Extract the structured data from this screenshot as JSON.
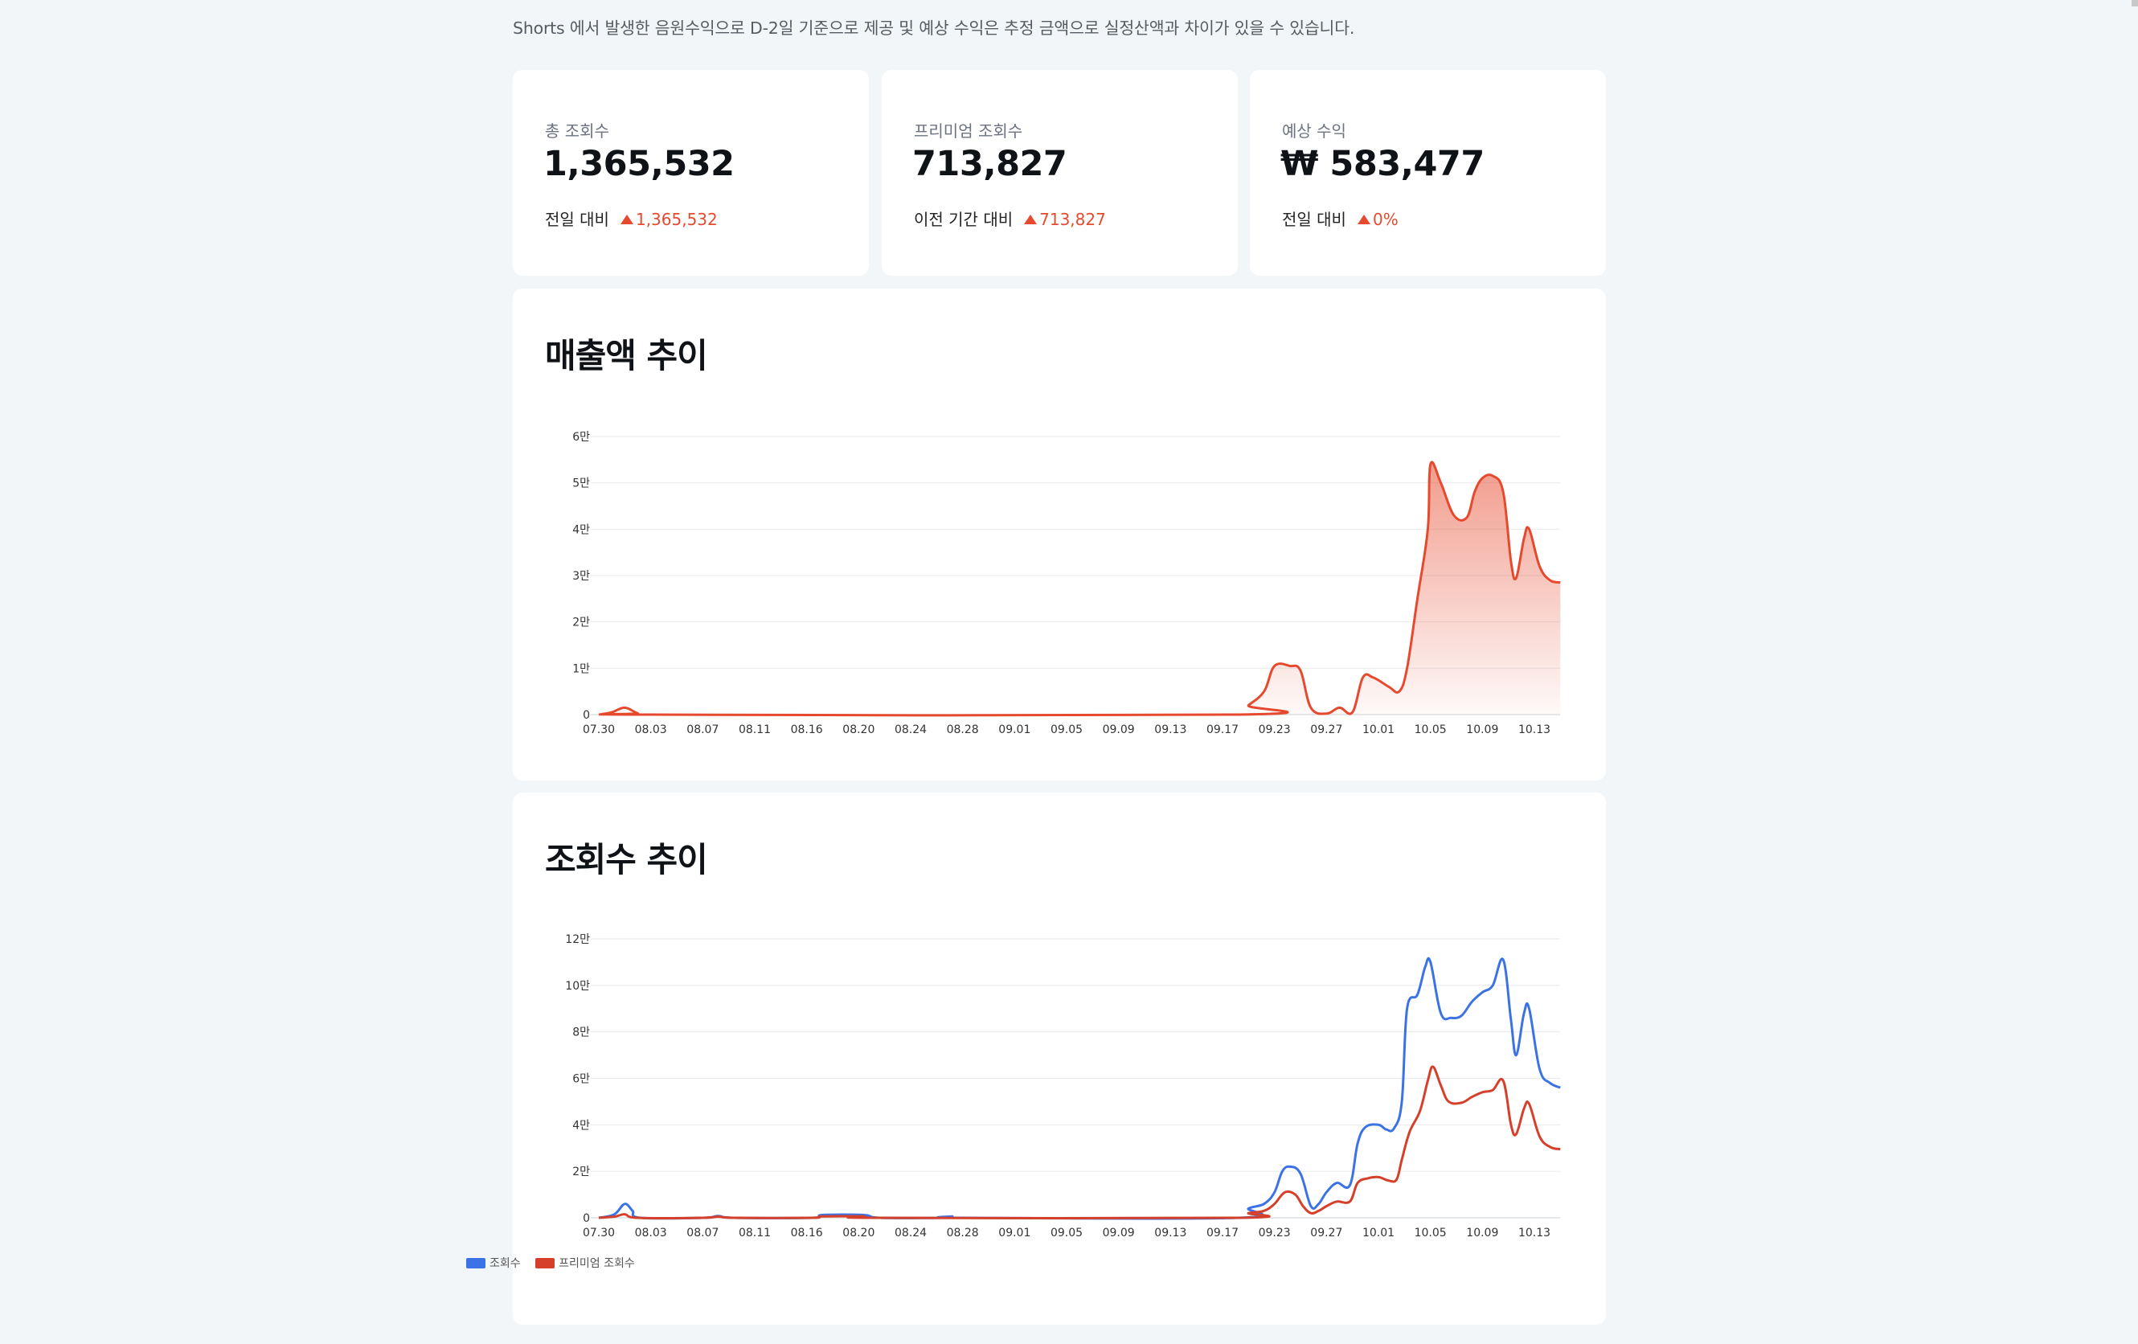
{
  "notice": "Shorts 에서 발생한 음원수익으로 D-2일 기준으로 제공 및 예상 수익은 추정 금액으로 실정산액과 차이가 있을 수 있습니다.",
  "stats": [
    {
      "label": "총 조회수",
      "value": "1,365,532",
      "compare_label": "전일 대비",
      "delta": "1,365,532"
    },
    {
      "label": "프리미엄 조회수",
      "value": "713,827",
      "compare_label": "이전 기간 대비",
      "delta": "713,827"
    },
    {
      "label": "예상 수익",
      "value": "₩ 583,477",
      "compare_label": "전일 대비",
      "delta": "0%"
    }
  ],
  "colors": {
    "views": "#3b73e6",
    "premium": "#e64a2e",
    "accent": "#e64a2e"
  },
  "chart_data": [
    {
      "type": "area",
      "title": "매출액 추이",
      "x_ticks": [
        "07.30",
        "08.03",
        "08.07",
        "08.11",
        "08.16",
        "08.20",
        "08.24",
        "08.28",
        "09.01",
        "09.05",
        "09.09",
        "09.13",
        "09.17",
        "09.23",
        "09.27",
        "10.01",
        "10.05",
        "10.09",
        "10.13"
      ],
      "y_ticks": [
        "0",
        "1만",
        "2만",
        "3만",
        "4만",
        "5만",
        "6만"
      ],
      "ylim": [
        0,
        60000
      ],
      "grid": true,
      "series": [
        {
          "color": "#e64a2e",
          "points": [
            [
              0,
              0
            ],
            [
              0.25,
              500
            ],
            [
              0.5,
              1500
            ],
            [
              0.75,
              300
            ],
            [
              1,
              0
            ],
            [
              12.3,
              0
            ],
            [
              12.5,
              2000
            ],
            [
              12.8,
              5000
            ],
            [
              13.0,
              10500
            ],
            [
              13.3,
              10500
            ],
            [
              13.5,
              9500
            ],
            [
              13.7,
              1500
            ],
            [
              14.0,
              200
            ],
            [
              14.25,
              1500
            ],
            [
              14.5,
              500
            ],
            [
              14.7,
              8000
            ],
            [
              14.9,
              8000
            ],
            [
              15.2,
              6000
            ],
            [
              15.4,
              5000
            ],
            [
              15.55,
              10000
            ],
            [
              15.75,
              25000
            ],
            [
              15.95,
              40000
            ],
            [
              16.0,
              54000
            ],
            [
              16.2,
              50000
            ],
            [
              16.45,
              43000
            ],
            [
              16.7,
              42500
            ],
            [
              16.85,
              48000
            ],
            [
              17.0,
              51000
            ],
            [
              17.2,
              51500
            ],
            [
              17.4,
              48000
            ],
            [
              17.55,
              33000
            ],
            [
              17.65,
              29500
            ],
            [
              17.8,
              38000
            ],
            [
              17.9,
              40000
            ],
            [
              18.1,
              32000
            ],
            [
              18.3,
              29000
            ],
            [
              18.5,
              28500
            ]
          ]
        }
      ]
    },
    {
      "type": "line",
      "title": "조회수 추이",
      "x_ticks": [
        "07.30",
        "08.03",
        "08.07",
        "08.11",
        "08.16",
        "08.20",
        "08.24",
        "08.28",
        "09.01",
        "09.05",
        "09.09",
        "09.13",
        "09.17",
        "09.23",
        "09.27",
        "10.01",
        "10.05",
        "10.09",
        "10.13"
      ],
      "y_ticks": [
        "0",
        "2만",
        "4만",
        "6만",
        "8만",
        "10만",
        "12만"
      ],
      "ylim": [
        0,
        120000
      ],
      "grid": true,
      "legend": "bottom-center",
      "series": [
        {
          "name": "조회수",
          "color": "#3b73e6",
          "points": [
            [
              0,
              0
            ],
            [
              0.3,
              1500
            ],
            [
              0.5,
              6000
            ],
            [
              0.65,
              3000
            ],
            [
              0.8,
              0
            ],
            [
              2,
              0
            ],
            [
              2.3,
              800
            ],
            [
              2.6,
              0
            ],
            [
              4.1,
              0
            ],
            [
              4.3,
              1200
            ],
            [
              5.1,
              1200
            ],
            [
              5.4,
              0
            ],
            [
              6.6,
              0
            ],
            [
              6.8,
              600
            ],
            [
              7.0,
              0
            ],
            [
              12.3,
              0
            ],
            [
              12.5,
              4000
            ],
            [
              12.8,
              6000
            ],
            [
              13.0,
              11000
            ],
            [
              13.15,
              20000
            ],
            [
              13.3,
              22000
            ],
            [
              13.5,
              19000
            ],
            [
              13.7,
              5000
            ],
            [
              13.85,
              6000
            ],
            [
              14.0,
              11000
            ],
            [
              14.2,
              15000
            ],
            [
              14.45,
              14000
            ],
            [
              14.6,
              32000
            ],
            [
              14.75,
              39000
            ],
            [
              15.0,
              40000
            ],
            [
              15.15,
              38000
            ],
            [
              15.3,
              38500
            ],
            [
              15.45,
              50000
            ],
            [
              15.55,
              90000
            ],
            [
              15.75,
              96000
            ],
            [
              15.9,
              108000
            ],
            [
              16.0,
              110000
            ],
            [
              16.2,
              88000
            ],
            [
              16.4,
              86000
            ],
            [
              16.6,
              87000
            ],
            [
              16.8,
              93000
            ],
            [
              17.0,
              97000
            ],
            [
              17.2,
              100000
            ],
            [
              17.4,
              111000
            ],
            [
              17.55,
              85000
            ],
            [
              17.65,
              70000
            ],
            [
              17.8,
              88000
            ],
            [
              17.9,
              90000
            ],
            [
              18.1,
              64000
            ],
            [
              18.3,
              58000
            ],
            [
              18.5,
              56000
            ]
          ]
        },
        {
          "name": "프리미엄 조회수",
          "color": "#d6402b",
          "points": [
            [
              0,
              0
            ],
            [
              0.3,
              500
            ],
            [
              0.5,
              1500
            ],
            [
              0.75,
              0
            ],
            [
              2,
              0
            ],
            [
              2.3,
              500
            ],
            [
              2.6,
              0
            ],
            [
              4.1,
              0
            ],
            [
              4.3,
              600
            ],
            [
              5.1,
              600
            ],
            [
              5.4,
              0
            ],
            [
              12.3,
              0
            ],
            [
              12.5,
              2000
            ],
            [
              12.8,
              3000
            ],
            [
              13.0,
              6000
            ],
            [
              13.2,
              11000
            ],
            [
              13.4,
              10000
            ],
            [
              13.55,
              5000
            ],
            [
              13.7,
              2000
            ],
            [
              13.85,
              3000
            ],
            [
              14.0,
              5000
            ],
            [
              14.2,
              7000
            ],
            [
              14.45,
              7000
            ],
            [
              14.6,
              15000
            ],
            [
              14.8,
              17000
            ],
            [
              15.0,
              17500
            ],
            [
              15.2,
              16000
            ],
            [
              15.35,
              16500
            ],
            [
              15.45,
              25000
            ],
            [
              15.6,
              37000
            ],
            [
              15.8,
              46000
            ],
            [
              15.95,
              59000
            ],
            [
              16.05,
              65000
            ],
            [
              16.2,
              57000
            ],
            [
              16.35,
              50000
            ],
            [
              16.6,
              49500
            ],
            [
              16.8,
              52000
            ],
            [
              17.0,
              54000
            ],
            [
              17.2,
              55000
            ],
            [
              17.4,
              59000
            ],
            [
              17.55,
              40000
            ],
            [
              17.65,
              36000
            ],
            [
              17.8,
              47000
            ],
            [
              17.9,
              49000
            ],
            [
              18.1,
              35000
            ],
            [
              18.3,
              30500
            ],
            [
              18.5,
              29500
            ]
          ]
        }
      ]
    }
  ]
}
